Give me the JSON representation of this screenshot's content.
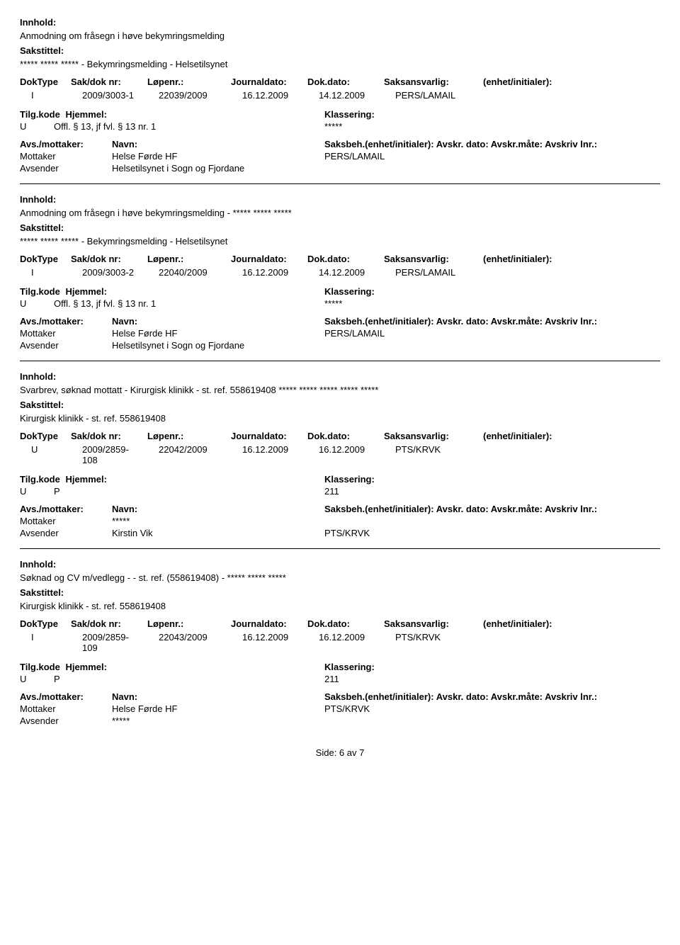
{
  "labels": {
    "innhold": "Innhold:",
    "sakstittel": "Sakstittel:",
    "doktype": "DokType",
    "sakdok": "Sak/dok nr:",
    "lopenr": "Løpenr.:",
    "journaldato": "Journaldato:",
    "dokdato": "Dok.dato:",
    "saksansvarlig": "Saksansvarlig:",
    "enhet": "(enhet/initialer):",
    "tilgkode": "Tilg.kode",
    "hjemmel": "Hjemmel:",
    "klassering": "Klassering:",
    "avsmottaker": "Avs./mottaker:",
    "navn": "Navn:",
    "saksbeh_line": "Saksbeh.(enhet/initialer): Avskr. dato: Avskr.måte: Avskriv lnr.:",
    "mottaker": "Mottaker",
    "avsender": "Avsender"
  },
  "records": [
    {
      "innhold": "Anmodning om fråsegn i høve bekymringsmelding",
      "sakstittel": "***** ***** *****  - Bekymringsmelding  - Helsetilsynet",
      "doktype": "I",
      "sakdok": "2009/3003-1",
      "lopenr": "22039/2009",
      "journaldato": "16.12.2009",
      "dokdato": "14.12.2009",
      "saksansvarlig": "PERS/LAMAIL",
      "enhet": "",
      "tilgkode": "U",
      "hjemmel": "Offl. § 13, jf fvl. § 13 nr. 1",
      "klassering": "*****",
      "parties": [
        {
          "role": "Mottaker",
          "name": "Helse Førde HF",
          "saksbeh": "PERS/LAMAIL"
        },
        {
          "role": "Avsender",
          "name": "Helsetilsynet i Sogn og Fjordane",
          "saksbeh": ""
        }
      ]
    },
    {
      "innhold": "Anmodning om fråsegn i høve bekymringsmelding - ***** ***** *****",
      "sakstittel": "***** ***** *****  - Bekymringsmelding  - Helsetilsynet",
      "doktype": "I",
      "sakdok": "2009/3003-2",
      "lopenr": "22040/2009",
      "journaldato": "16.12.2009",
      "dokdato": "14.12.2009",
      "saksansvarlig": "PERS/LAMAIL",
      "enhet": "",
      "tilgkode": "U",
      "hjemmel": "Offl. § 13, jf fvl. § 13 nr. 1",
      "klassering": "*****",
      "parties": [
        {
          "role": "Mottaker",
          "name": "Helse Førde HF",
          "saksbeh": "PERS/LAMAIL"
        },
        {
          "role": "Avsender",
          "name": "Helsetilsynet i Sogn og Fjordane",
          "saksbeh": ""
        }
      ]
    },
    {
      "innhold": "Svarbrev, søknad mottatt -  Kirurgisk klinikk - st. ref. 558619408  ***** ***** ***** ***** *****",
      "sakstittel": "Kirurgisk klinikk - st. ref. 558619408",
      "doktype": "U",
      "sakdok": "2009/2859-108",
      "lopenr": "22042/2009",
      "journaldato": "16.12.2009",
      "dokdato": "16.12.2009",
      "saksansvarlig": "PTS/KRVK",
      "enhet": "",
      "tilgkode": "U",
      "hjemmel": "P",
      "klassering": "211",
      "parties": [
        {
          "role": "Mottaker",
          "name": "*****",
          "saksbeh": ""
        },
        {
          "role": "Avsender",
          "name": "Kirstin Vik",
          "saksbeh": "PTS/KRVK"
        }
      ]
    },
    {
      "innhold": "Søknad og CV m/vedlegg -  - st. ref. (558619408) -  ***** ***** *****",
      "sakstittel": "Kirurgisk klinikk - st. ref. 558619408",
      "doktype": "I",
      "sakdok": "2009/2859-109",
      "lopenr": "22043/2009",
      "journaldato": "16.12.2009",
      "dokdato": "16.12.2009",
      "saksansvarlig": "PTS/KRVK",
      "enhet": "",
      "tilgkode": "U",
      "hjemmel": "P",
      "klassering": "211",
      "parties": [
        {
          "role": "Mottaker",
          "name": "Helse Førde HF",
          "saksbeh": "PTS/KRVK"
        },
        {
          "role": "Avsender",
          "name": "*****",
          "saksbeh": ""
        }
      ]
    }
  ],
  "footer": "Side:  6 av 7"
}
